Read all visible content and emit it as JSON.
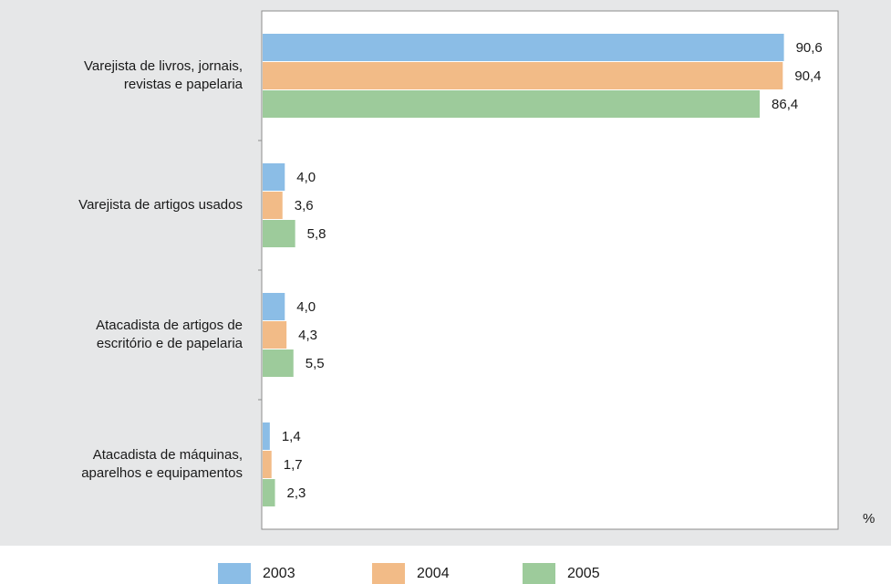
{
  "chart_data": {
    "type": "bar",
    "orientation": "horizontal",
    "title": "",
    "unit": "%",
    "categories": [
      "Varejista de livros, jornais,\nrevistas e papelaria",
      "Varejista de artigos usados",
      "Atacadista de artigos de\nescritório e de papelaria",
      "Atacadista de máquinas,\naparelhos e equipamentos"
    ],
    "series": [
      {
        "name": "2003",
        "color": "#8bbde6",
        "values": [
          90.6,
          4.0,
          4.0,
          1.4
        ],
        "labels": [
          "90,6",
          "4,0",
          "4,0",
          "1,4"
        ]
      },
      {
        "name": "2004",
        "color": "#f2bb87",
        "values": [
          90.4,
          3.6,
          4.3,
          1.7
        ],
        "labels": [
          "90,4",
          "3,6",
          "4,3",
          "1,7"
        ]
      },
      {
        "name": "2005",
        "color": "#9dcb9b",
        "values": [
          86.4,
          5.8,
          5.5,
          2.3
        ],
        "labels": [
          "86,4",
          "5,8",
          "5,5",
          "2,3"
        ]
      }
    ],
    "xlim": [
      0,
      100
    ],
    "grid": false,
    "legend_position": "bottom"
  }
}
